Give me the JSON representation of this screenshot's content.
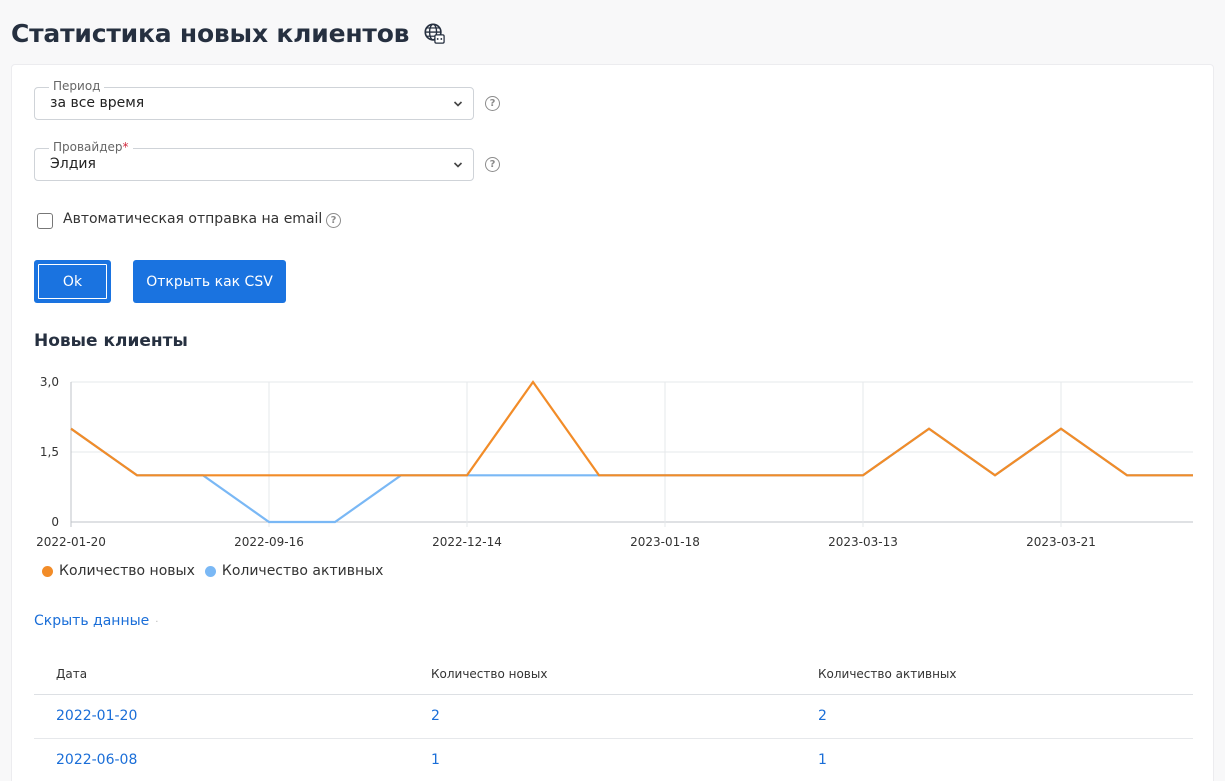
{
  "page": {
    "title": "Статистика новых клиентов",
    "title_icon": "globe-icon"
  },
  "filters": {
    "period": {
      "label": "Период",
      "value": "за все время"
    },
    "provider": {
      "label": "Провайдер",
      "required_mark": "*",
      "value": "Элдия"
    },
    "auto_email": {
      "label": "Автоматическая отправка на email",
      "checked": false
    }
  },
  "buttons": {
    "ok": "Ok",
    "csv": "Открыть как CSV"
  },
  "section_title": "Новые клиенты",
  "chart_data": {
    "type": "line",
    "title": "",
    "xlabel": "",
    "ylabel": "",
    "y_ticks": [
      "3,0",
      "1,5",
      "0"
    ],
    "ylim": [
      0,
      3
    ],
    "x_tick_labels": [
      "2022-01-20",
      "2022-09-16",
      "2022-12-14",
      "2023-01-18",
      "2023-03-13",
      "2023-03-21"
    ],
    "x": [
      1,
      2,
      3,
      4,
      5,
      6,
      7,
      8,
      9,
      10,
      11,
      12,
      13,
      14,
      15,
      16,
      17,
      18
    ],
    "series": [
      {
        "name": "Количество новых",
        "color": "#f28c28",
        "values": [
          2,
          1,
          1,
          1,
          1,
          1,
          1,
          3,
          1,
          1,
          1,
          1,
          1,
          2,
          1,
          2,
          1,
          1
        ]
      },
      {
        "name": "Количество активных",
        "color": "#7ab8f5",
        "values": [
          2,
          1,
          1,
          0,
          0,
          1,
          1,
          1,
          1,
          1,
          1,
          1,
          1,
          2,
          1,
          2,
          1,
          1
        ]
      }
    ],
    "grid": true,
    "legend_position": "bottom-left"
  },
  "toggle_label": "Скрыть данные",
  "table": {
    "headers": [
      "Дата",
      "Количество новых",
      "Количество активных"
    ],
    "rows": [
      [
        "2022-01-20",
        "2",
        "2"
      ],
      [
        "2022-06-08",
        "1",
        "1"
      ]
    ]
  }
}
